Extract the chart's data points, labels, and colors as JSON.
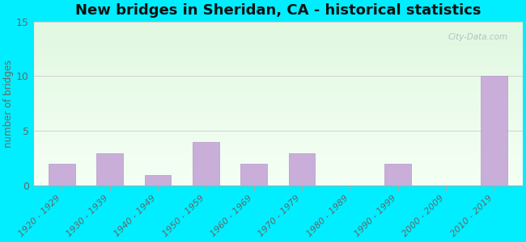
{
  "title": "New bridges in Sheridan, CA - historical statistics",
  "categories": [
    "1920 - 1929",
    "1930 - 1939",
    "1940 - 1949",
    "1950 - 1959",
    "1960 - 1969",
    "1970 - 1979",
    "1980 - 1989",
    "1990 - 1999",
    "2000 - 2009",
    "2010 - 2019"
  ],
  "values": [
    2,
    3,
    1,
    4,
    2,
    3,
    0,
    2,
    0,
    10
  ],
  "bar_color": "#c8aed8",
  "bar_edge_color": "#b898c8",
  "ylabel": "number of bridges",
  "ylim": [
    0,
    15
  ],
  "yticks": [
    0,
    5,
    10,
    15
  ],
  "background_outer": "#00eeff",
  "grid_color": "#cccccc",
  "title_fontsize": 13,
  "label_fontsize": 8.5,
  "tick_fontsize": 8,
  "watermark_text": "City-Data.com",
  "watermark_color": "#a8b8c0",
  "tick_color": "#666666",
  "spine_color": "#aaaaaa"
}
